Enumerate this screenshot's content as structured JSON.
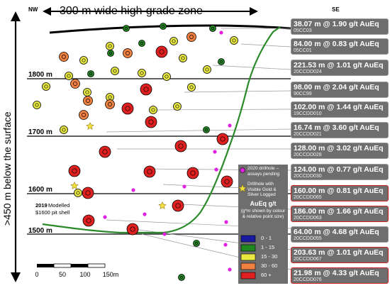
{
  "header": {
    "nw_label": "NW",
    "se_label": "SE",
    "zone_label": "300 m wide high-grade zone",
    "vertical_label": ">450 m below the surface"
  },
  "elevations": [
    "1800 m",
    "1700 m",
    "1600 m",
    "1500 m"
  ],
  "pit_shell": {
    "year": "2019",
    "text_1": "Modelled",
    "text_2": "$1600 pit shell"
  },
  "scale_bar": {
    "ticks": [
      "0",
      "50",
      "100",
      "150m"
    ]
  },
  "intercepts": [
    {
      "main": "38.07 m @ 1.90 g/t AuEq",
      "hole": "05CC03",
      "red": false
    },
    {
      "main": "84.00 m @ 0.83 g/t AuEq",
      "hole": "05CC01",
      "red": false
    },
    {
      "main": "221.53 m @ 1.01 g/t AuEq",
      "hole": "20CCDD024",
      "red": false
    },
    {
      "main": "98.00 m @ 2.04 g/t AuEq",
      "hole": "90CC99",
      "red": false
    },
    {
      "main": "102.00 m @ 1.44 g/t AuEq",
      "hole": "19CCDD010",
      "red": false
    },
    {
      "main": "16.74 m @ 3.60 g/t AuEq",
      "hole": "20CCDD021",
      "red": false
    },
    {
      "main": "128.00 m @ 3.02 g/t AuEq",
      "hole": "20CCDD028",
      "red": false
    },
    {
      "main": "124.00 m @ 0.77 g/t AuEq",
      "hole": "20CCDD030",
      "red": false
    },
    {
      "main": "160.00 m @ 0.81 g/t AuEq",
      "hole": "20CCDD065",
      "red": true
    },
    {
      "main": "186.00 m @ 1.66 g/t AuEq",
      "hole": "20CCDD063",
      "red": true
    },
    {
      "main": "64.00 m @ 4.68 g/t AuEq",
      "hole": "20CCDD055",
      "red": false
    },
    {
      "main": "203.63 m @ 1.01 g/t AuEq",
      "hole": "20CCDD067",
      "red": true
    },
    {
      "main": "21.98 m @ 4.33 g/t AuEq",
      "hole": "20CCDD076",
      "red": true
    }
  ],
  "legend": {
    "drillhole_2020": "2020 drillhole – assays pending",
    "visible_gold": "Drillhole with Visible Gold & Silver Logged",
    "title": "AuEq g/t",
    "subtitle": "(g*m shown by colour & relative point size)",
    "classes": [
      {
        "label": "0 - 1",
        "color": "#1a1aa0"
      },
      {
        "label": "1 - 15",
        "color": "#1e8a1e"
      },
      {
        "label": "15 - 30",
        "color": "#e8e840"
      },
      {
        "label": "30 - 60",
        "color": "#f08040"
      },
      {
        "label": "60 +",
        "color": "#e02020"
      }
    ]
  },
  "colors": {
    "pit_shell": "#2a8a2a",
    "green": "#1e8a1e",
    "yellow": "#e8e840",
    "orange": "#f08040",
    "red": "#e02020",
    "magenta": "#e020e0",
    "star": "#f0e040"
  }
}
